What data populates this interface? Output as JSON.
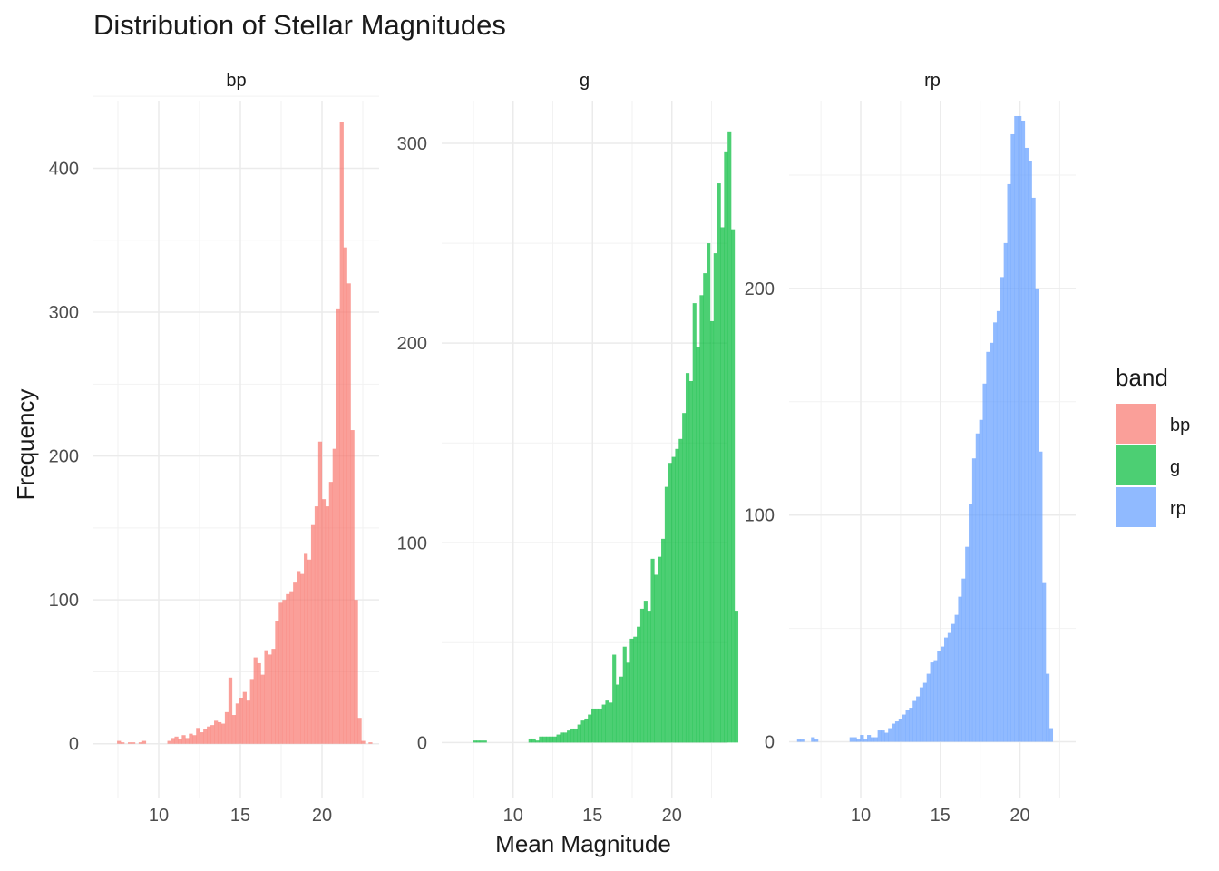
{
  "chart_data": {
    "type": "histogram",
    "title": "Distribution of Stellar Magnitudes",
    "xlabel": "Mean Magnitude",
    "ylabel": "Frequency",
    "legend": {
      "title": "band",
      "position": "right",
      "entries": [
        "bp",
        "g",
        "rp"
      ]
    },
    "grid": true,
    "bin_width": 0.22,
    "panels": [
      {
        "name": "bp",
        "color": "#F8766D",
        "xlim": [
          6,
          23.5
        ],
        "ylim": [
          -38,
          452
        ],
        "x_ticks": [
          10,
          15,
          20
        ],
        "y_ticks": [
          0,
          100,
          200,
          300,
          400
        ],
        "bins_start": 7.45,
        "counts": [
          2,
          1,
          0,
          1,
          1,
          0,
          1,
          2,
          0,
          0,
          0,
          0,
          0,
          0,
          2,
          4,
          5,
          3,
          6,
          4,
          7,
          6,
          11,
          8,
          10,
          12,
          13,
          16,
          15,
          14,
          22,
          46,
          20,
          28,
          32,
          36,
          30,
          45,
          60,
          56,
          48,
          65,
          62,
          66,
          85,
          98,
          100,
          104,
          106,
          112,
          120,
          118,
          132,
          128,
          152,
          165,
          210,
          170,
          165,
          182,
          205,
          302,
          432,
          345,
          320,
          218,
          100,
          18,
          2,
          0,
          1
        ]
      },
      {
        "name": "g",
        "color": "#00BA38",
        "xlim": [
          5.5,
          23.5
        ],
        "ylim": [
          -28,
          325
        ],
        "x_ticks": [
          10,
          15,
          20
        ],
        "y_ticks": [
          0,
          100,
          200,
          300
        ],
        "bins_start": 7.45,
        "counts": [
          1,
          1,
          1,
          1,
          0,
          0,
          0,
          0,
          0,
          0,
          0,
          0,
          0,
          0,
          0,
          0,
          2,
          2,
          1,
          3,
          3,
          3,
          3,
          3,
          4,
          5,
          5,
          6,
          7,
          7,
          9,
          11,
          12,
          14,
          17,
          17,
          17,
          19,
          21,
          20,
          44,
          29,
          33,
          48,
          40,
          52,
          53,
          58,
          67,
          71,
          66,
          92,
          84,
          93,
          102,
          128,
          140,
          143,
          147,
          152,
          165,
          185,
          181,
          220,
          198,
          224,
          235,
          250,
          211,
          245,
          280,
          258,
          296,
          306,
          257,
          66
        ]
      },
      {
        "name": "rp",
        "color": "#619CFF",
        "xlim": [
          5.5,
          23.5
        ],
        "ylim": [
          -25,
          286
        ],
        "x_ticks": [
          10,
          15,
          20
        ],
        "y_ticks": [
          0,
          100,
          200
        ],
        "bins_start": 6.0,
        "counts": [
          1,
          1,
          0,
          0,
          2,
          1,
          0,
          0,
          0,
          0,
          0,
          0,
          0,
          0,
          0,
          2,
          2,
          1,
          3,
          1,
          3,
          2,
          2,
          5,
          5,
          4,
          6,
          8,
          9,
          10,
          12,
          14,
          15,
          18,
          20,
          24,
          26,
          30,
          35,
          36,
          40,
          42,
          46,
          48,
          52,
          56,
          64,
          72,
          86,
          105,
          125,
          136,
          142,
          158,
          172,
          176,
          185,
          190,
          205,
          220,
          246,
          268,
          276,
          276,
          274,
          262,
          256,
          240,
          200,
          128,
          70,
          30,
          6
        ]
      }
    ]
  }
}
